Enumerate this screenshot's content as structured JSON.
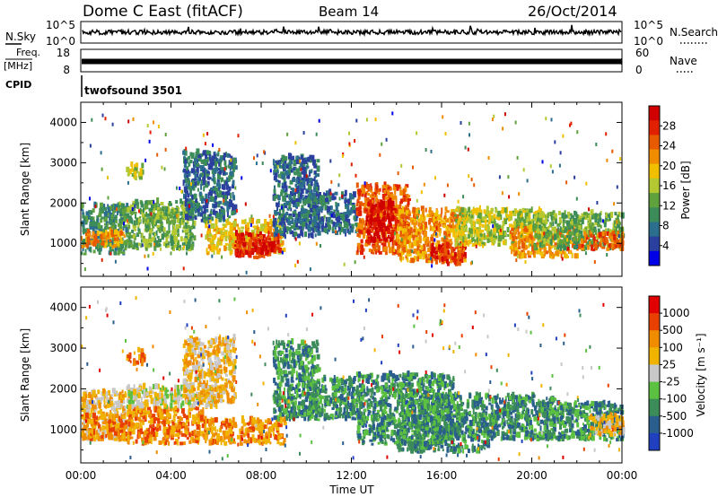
{
  "header": {
    "station": "Dome C East (fitACF)",
    "beam": "Beam 14",
    "date": "26/Oct/2014"
  },
  "top_panels": {
    "nsky_label": "N.Sky",
    "nsky_ticks": [
      "10^5",
      "10^0"
    ],
    "nsearch_label": "N.Search",
    "nsearch_ticks": [
      "10^5",
      "10^0"
    ],
    "freq_label": "Freq.",
    "freq_unit": "[MHz]",
    "freq_ticks": [
      "18",
      "8"
    ],
    "nave_label": "Nave",
    "nave_ticks": [
      "60",
      "0"
    ],
    "cpid_label": "CPID",
    "cpid_value": "twofsound 3501"
  },
  "chart_data": [
    {
      "type": "heatmap",
      "parameter": "power",
      "ylabel": "Slant Range [km]",
      "ylim": [
        180,
        4500
      ],
      "yticks": [
        "1000",
        "2000",
        "3000",
        "4000"
      ],
      "xlim": [
        0,
        24
      ],
      "colorbar": {
        "label": "Power [dB]",
        "ticks": [
          "28",
          "24",
          "20",
          "16",
          "12",
          "8",
          "4"
        ],
        "colors": [
          "#0000e6",
          "#2a3f9e",
          "#2c6e8e",
          "#3c8c5a",
          "#5fa13c",
          "#b4c832",
          "#f0c000",
          "#f08c00",
          "#e85a00",
          "#e02000",
          "#d00000"
        ]
      },
      "regions": [
        {
          "t": [
            0.0,
            2.0
          ],
          "r": [
            700,
            1900
          ],
          "level": 3
        },
        {
          "t": [
            0.0,
            1.8
          ],
          "r": [
            850,
            1250
          ],
          "level": 7
        },
        {
          "t": [
            2.0,
            2.8
          ],
          "r": [
            2550,
            2900
          ],
          "level": 5
        },
        {
          "t": [
            2.0,
            5.0
          ],
          "r": [
            800,
            2000
          ],
          "level": 4
        },
        {
          "t": [
            4.5,
            6.8
          ],
          "r": [
            1500,
            3200
          ],
          "level": 2
        },
        {
          "t": [
            5.5,
            9.0
          ],
          "r": [
            700,
            1500
          ],
          "level": 6
        },
        {
          "t": [
            6.8,
            8.8
          ],
          "r": [
            600,
            1200
          ],
          "level": 9
        },
        {
          "t": [
            7.5,
            8.5
          ],
          "r": [
            700,
            1000
          ],
          "level": 10
        },
        {
          "t": [
            8.5,
            10.5
          ],
          "r": [
            1100,
            3100
          ],
          "level": 2
        },
        {
          "t": [
            10.0,
            12.2
          ],
          "r": [
            1200,
            2200
          ],
          "level": 2
        },
        {
          "t": [
            12.2,
            14.5
          ],
          "r": [
            700,
            2400
          ],
          "level": 8
        },
        {
          "t": [
            12.6,
            13.8
          ],
          "r": [
            1000,
            2000
          ],
          "level": 10
        },
        {
          "t": [
            14.0,
            17.0
          ],
          "r": [
            500,
            1800
          ],
          "level": 7
        },
        {
          "t": [
            15.5,
            17.0
          ],
          "r": [
            400,
            900
          ],
          "level": 9
        },
        {
          "t": [
            16.5,
            20.5
          ],
          "r": [
            900,
            1800
          ],
          "level": 5
        },
        {
          "t": [
            19.0,
            22.0
          ],
          "r": [
            600,
            1300
          ],
          "level": 7
        },
        {
          "t": [
            20.0,
            24.0
          ],
          "r": [
            800,
            1700
          ],
          "level": 4
        },
        {
          "t": [
            22.0,
            24.0
          ],
          "r": [
            800,
            1200
          ],
          "level": 8
        }
      ]
    },
    {
      "type": "heatmap",
      "parameter": "velocity",
      "ylabel": "Slant Range [km]",
      "ylim": [
        180,
        4500
      ],
      "yticks": [
        "1000",
        "2000",
        "3000",
        "4000"
      ],
      "xlim": [
        0,
        24
      ],
      "xticks": [
        "00:00",
        "04:00",
        "08:00",
        "12:00",
        "16:00",
        "20:00",
        "00:00"
      ],
      "xlabel": "Time UT",
      "colorbar": {
        "label": "Velocity [m s⁻¹]",
        "ticks": [
          "1000",
          "500",
          "100",
          "25",
          "-25",
          "-100",
          "-500",
          "-1000"
        ],
        "colors": [
          "#2040c0",
          "#2a5e8c",
          "#3c8c5a",
          "#5cc040",
          "#c8c8c8",
          "#f0b400",
          "#f08c00",
          "#e84000",
          "#e00000"
        ]
      },
      "regions": [
        {
          "t": [
            0.0,
            2.2
          ],
          "r": [
            700,
            1900
          ],
          "level": 5
        },
        {
          "t": [
            0.0,
            2.0
          ],
          "r": [
            700,
            1300
          ],
          "level": 6
        },
        {
          "t": [
            2.0,
            2.8
          ],
          "r": [
            2550,
            2900
          ],
          "level": 6
        },
        {
          "t": [
            2.0,
            5.5
          ],
          "r": [
            600,
            1500
          ],
          "level": 6
        },
        {
          "t": [
            2.0,
            6.0
          ],
          "r": [
            1500,
            2000
          ],
          "level": 4
        },
        {
          "t": [
            4.5,
            6.8
          ],
          "r": [
            1600,
            3200
          ],
          "level": 5
        },
        {
          "t": [
            5.5,
            9.0
          ],
          "r": [
            600,
            1200
          ],
          "level": 6
        },
        {
          "t": [
            8.5,
            10.5
          ],
          "r": [
            1200,
            3100
          ],
          "level": 2
        },
        {
          "t": [
            10.0,
            12.2
          ],
          "r": [
            1200,
            2200
          ],
          "level": 2
        },
        {
          "t": [
            12.2,
            16.5
          ],
          "r": [
            600,
            2300
          ],
          "level": 2
        },
        {
          "t": [
            14.0,
            18.0
          ],
          "r": [
            400,
            1800
          ],
          "level": 2
        },
        {
          "t": [
            18.0,
            21.0
          ],
          "r": [
            700,
            1800
          ],
          "level": 2
        },
        {
          "t": [
            20.5,
            24.0
          ],
          "r": [
            700,
            1600
          ],
          "level": 2
        },
        {
          "t": [
            22.5,
            24.0
          ],
          "r": [
            800,
            1300
          ],
          "level": 5
        }
      ]
    }
  ]
}
